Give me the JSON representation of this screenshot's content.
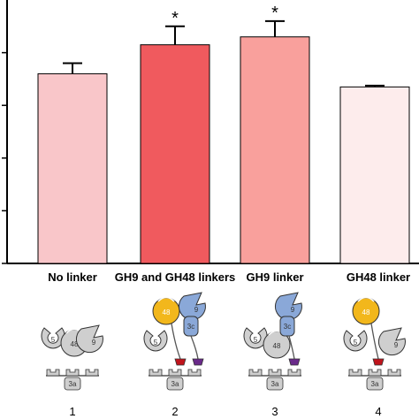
{
  "chart_data": {
    "type": "bar",
    "title": "",
    "xlabel": "",
    "ylabel": "",
    "ylim": [
      0,
      1.0
    ],
    "yticks": [
      0,
      0.2,
      0.4,
      0.6,
      0.8
    ],
    "categories": [
      "No linker",
      "GH9 and GH48 linkers",
      "GH9 linker",
      "GH48 linker"
    ],
    "values": [
      0.72,
      0.83,
      0.86,
      0.67
    ],
    "errors": [
      0.04,
      0.07,
      0.06,
      0.005
    ],
    "significance": [
      "",
      "*",
      "*",
      ""
    ],
    "colors": [
      "#f9c6c9",
      "#f05a5e",
      "#f9a09c",
      "#fdecec"
    ],
    "grid": false,
    "legend": "none"
  },
  "schematics": [
    {
      "number": "1",
      "modules": {
        "gh5": "5",
        "gh48": "48",
        "gh9": "9",
        "scaffold": "3a"
      }
    },
    {
      "number": "2",
      "modules": {
        "gh5": "5",
        "gh48": "48",
        "gh9": "9",
        "cbm": "3c",
        "scaffold": "3a"
      }
    },
    {
      "number": "3",
      "modules": {
        "gh5": "5",
        "gh48": "48",
        "gh9": "9",
        "cbm": "3c",
        "scaffold": "3a"
      }
    },
    {
      "number": "4",
      "modules": {
        "gh5": "5",
        "gh48": "48",
        "gh9": "9",
        "scaffold": "3a"
      }
    }
  ],
  "colors": {
    "gh48_highlight": "#f2b71c",
    "gh9_highlight": "#8aa8d8",
    "dockerin_red": "#c0141c",
    "dockerin_purple": "#6a2a8a",
    "module_gray": "#cfcfcf"
  }
}
